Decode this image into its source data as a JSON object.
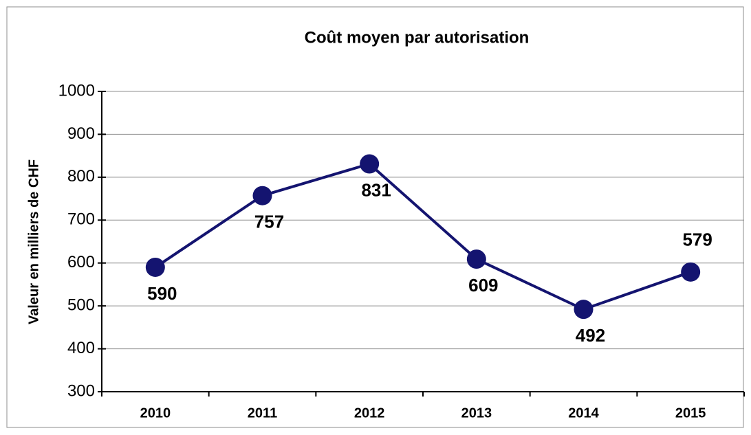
{
  "chart_data": {
    "type": "line",
    "title": "Coût moyen par autorisation",
    "y_label": "Valeur en milliers de CHF",
    "categories": [
      "2010",
      "2011",
      "2012",
      "2013",
      "2014",
      "2015"
    ],
    "values": [
      590,
      757,
      831,
      609,
      492,
      579
    ],
    "color": "#141470",
    "ylim": [
      300,
      1000
    ],
    "yticks": [
      300,
      400,
      500,
      600,
      700,
      800,
      900,
      1000
    ],
    "grid": true
  }
}
